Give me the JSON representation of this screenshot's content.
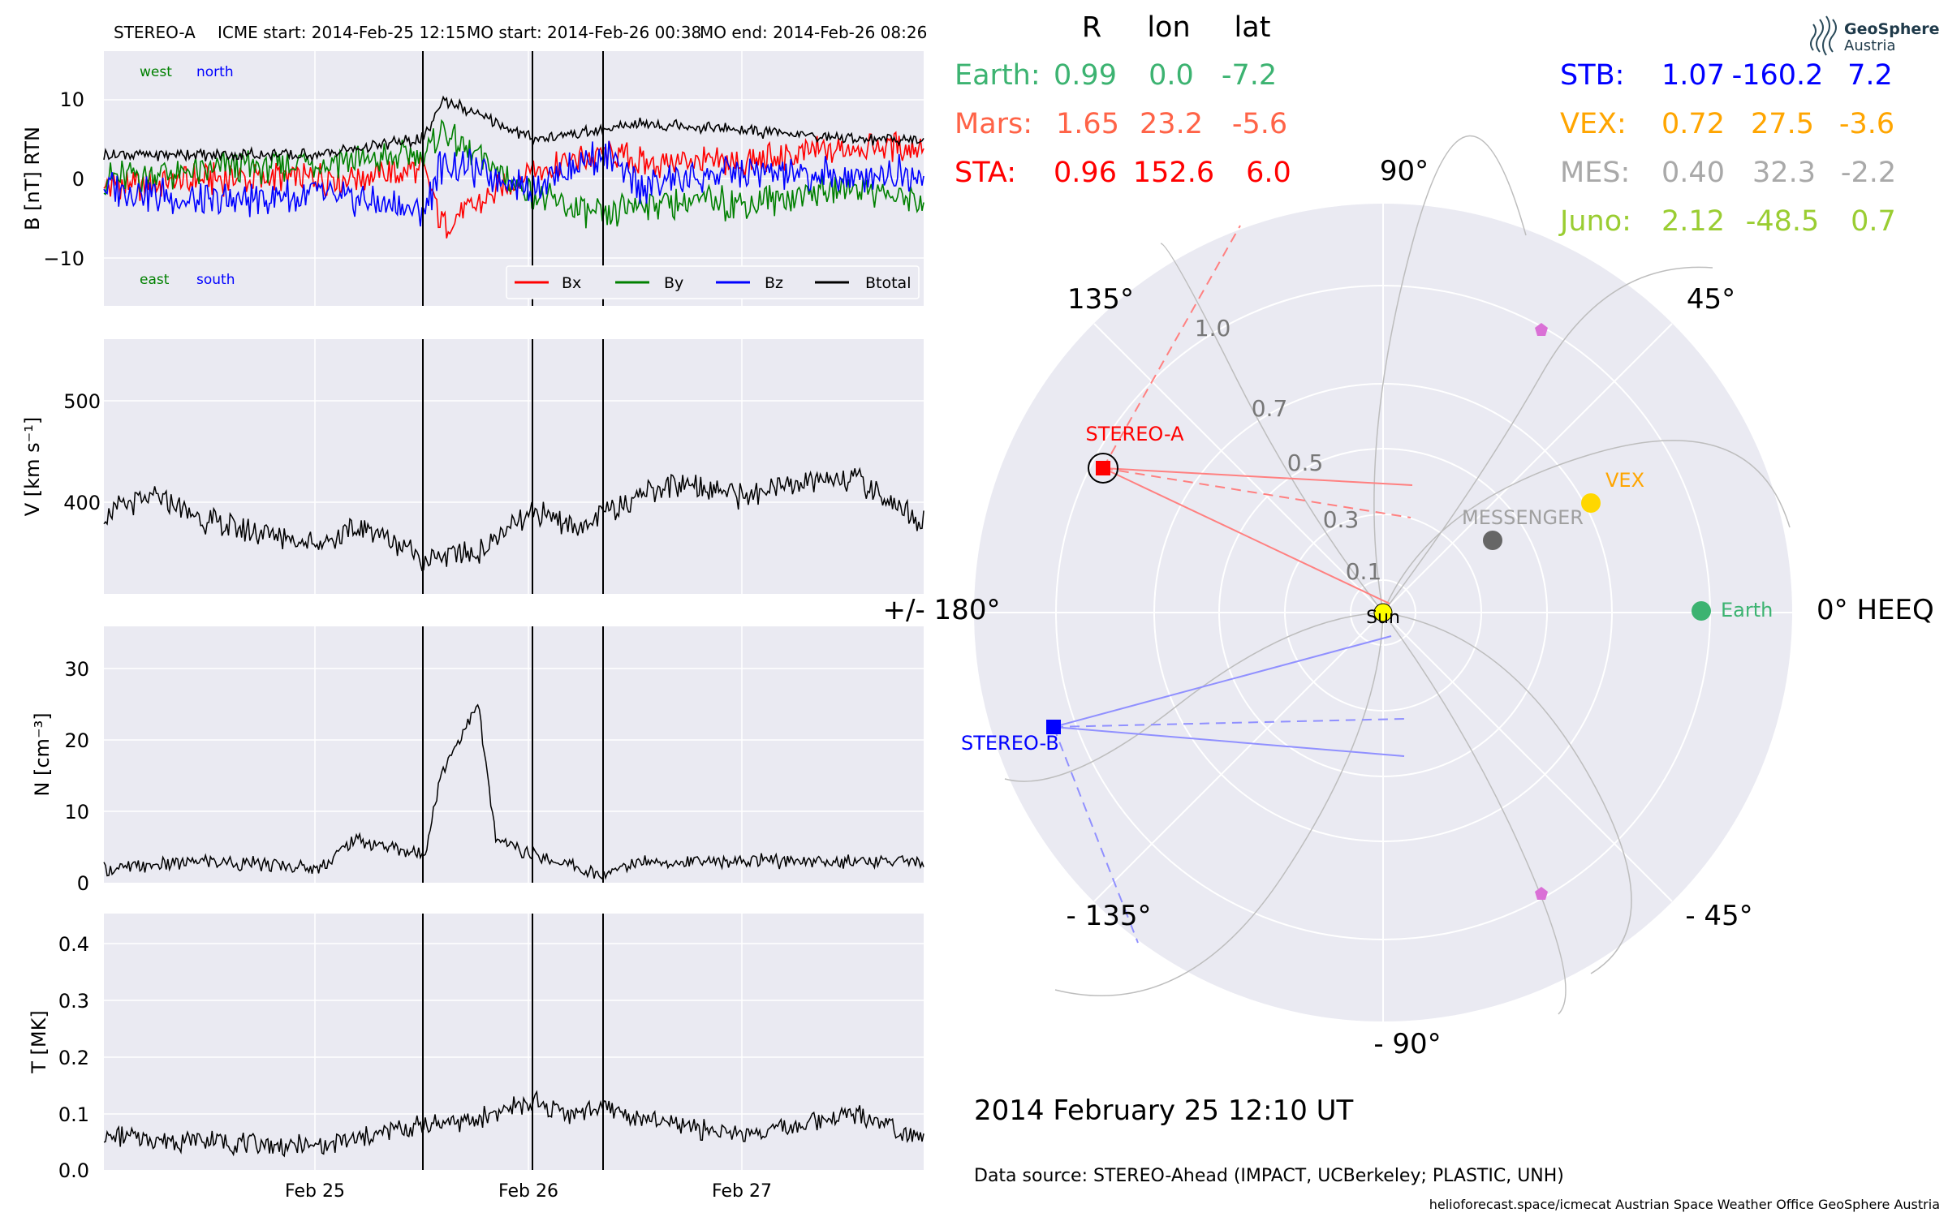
{
  "header": {
    "spacecraft": "STEREO-A",
    "icme_start": "ICME start: 2014-Feb-25 12:15",
    "mo_start": "MO start: 2014-Feb-26 00:38",
    "mo_end": "MO end: 2014-Feb-26 08:26"
  },
  "colors": {
    "panel_bg": "#eaeaf2",
    "bx": "#ff0000",
    "by": "#008000",
    "bz": "#0000ff",
    "btotal": "#000000",
    "earth": "#3cb371",
    "mars": "#ff6347",
    "sta": "#ff0000",
    "stb": "#0000ff",
    "vex": "#ffa500",
    "mes": "#a9a9a9",
    "juno": "#9acd32",
    "psp_marker": "#da70d6"
  },
  "chart_data": [
    {
      "type": "line",
      "panel": "magnetic-field",
      "ylabel": "B [nT] RTN",
      "ylim": [
        -16,
        16
      ],
      "yticks": [
        "−10",
        "0",
        "10"
      ],
      "xlim": [
        "2014-02-24 00:00",
        "2014-02-27 20:00"
      ],
      "xticks": [
        "Feb 25",
        "Feb 26",
        "Feb 27"
      ],
      "annotations": {
        "west": "west",
        "north": "north",
        "east": "east",
        "south": "south"
      },
      "legend": [
        "Bx",
        "By",
        "Bz",
        "Btotal"
      ],
      "legend_position": "lower-right",
      "series": [
        {
          "name": "Bx",
          "color": "#ff0000",
          "x": [
            "Feb 24 00h",
            "Feb 24 12h",
            "Feb 25 00h",
            "Feb 25 12h",
            "Feb 25 14h",
            "Feb 26 00h",
            "Feb 26 08h",
            "Feb 26 12h",
            "Feb 27 00h",
            "Feb 27 12h",
            "Feb 27 20h"
          ],
          "values": [
            -1,
            0,
            0,
            1,
            -6,
            1,
            3,
            2,
            2,
            4,
            4
          ]
        },
        {
          "name": "By",
          "color": "#008000",
          "x": [
            "Feb 24 00h",
            "Feb 24 12h",
            "Feb 25 00h",
            "Feb 25 12h",
            "Feb 25 14h",
            "Feb 26 00h",
            "Feb 26 08h",
            "Feb 26 12h",
            "Feb 27 00h",
            "Feb 27 12h",
            "Feb 27 20h"
          ],
          "values": [
            0,
            1,
            2,
            3,
            6,
            -2,
            -5,
            -3,
            -3,
            -1,
            -3
          ]
        },
        {
          "name": "Bz",
          "color": "#0000ff",
          "x": [
            "Feb 24 00h",
            "Feb 24 12h",
            "Feb 25 00h",
            "Feb 25 12h",
            "Feb 25 14h",
            "Feb 26 00h",
            "Feb 26 08h",
            "Feb 26 12h",
            "Feb 27 00h",
            "Feb 27 12h",
            "Feb 27 20h"
          ],
          "values": [
            -1,
            -3,
            -2,
            -4,
            2,
            -1,
            3,
            -1,
            1,
            0,
            1
          ]
        },
        {
          "name": "Btotal",
          "color": "#000000",
          "x": [
            "Feb 24 00h",
            "Feb 24 12h",
            "Feb 25 00h",
            "Feb 25 12h",
            "Feb 25 14h",
            "Feb 26 00h",
            "Feb 26 08h",
            "Feb 26 12h",
            "Feb 27 00h",
            "Feb 27 12h",
            "Feb 27 20h"
          ],
          "values": [
            3,
            3,
            3,
            5,
            10,
            5,
            6,
            7,
            6,
            5,
            5
          ]
        }
      ],
      "event_lines": [
        "2014-02-25 12:15",
        "2014-02-26 00:38",
        "2014-02-26 08:26"
      ]
    },
    {
      "type": "line",
      "panel": "speed",
      "ylabel": "V [km s⁻¹]",
      "ylim": [
        310,
        560
      ],
      "yticks": [
        "400",
        "500"
      ],
      "series": [
        {
          "name": "V",
          "x": [
            "Feb 24 00h",
            "Feb 24 06h",
            "Feb 24 12h",
            "Feb 24 18h",
            "Feb 25 00h",
            "Feb 25 06h",
            "Feb 25 12h",
            "Feb 25 18h",
            "Feb 26 00h",
            "Feb 26 06h",
            "Feb 26 12h",
            "Feb 26 18h",
            "Feb 27 00h",
            "Feb 27 06h",
            "Feb 27 12h",
            "Feb 27 20h"
          ],
          "values": [
            390,
            405,
            380,
            370,
            360,
            375,
            345,
            350,
            390,
            375,
            410,
            420,
            405,
            420,
            425,
            380
          ]
        }
      ]
    },
    {
      "type": "line",
      "panel": "density",
      "ylabel": "N [cm⁻³]",
      "ylim": [
        0,
        36
      ],
      "yticks": [
        "0",
        "10",
        "20",
        "30"
      ],
      "series": [
        {
          "name": "N",
          "x": [
            "Feb 24 00h",
            "Feb 24 12h",
            "Feb 25 00h",
            "Feb 25 04h",
            "Feb 25 12h",
            "Feb 25 14h",
            "Feb 25 18h",
            "Feb 25 20h",
            "Feb 26 00h",
            "Feb 26 08h",
            "Feb 26 12h",
            "Feb 27 00h",
            "Feb 27 12h",
            "Feb 27 20h"
          ],
          "values": [
            2,
            3,
            2,
            6,
            4,
            16,
            25,
            6,
            4,
            1,
            3,
            3,
            3,
            3
          ]
        }
      ]
    },
    {
      "type": "line",
      "panel": "temperature",
      "ylabel": "T [MK]",
      "ylim": [
        0,
        0.45
      ],
      "yticks": [
        "0.0",
        "0.1",
        "0.2",
        "0.3",
        "0.4"
      ],
      "series": [
        {
          "name": "T",
          "x": [
            "Feb 24 00h",
            "Feb 24 12h",
            "Feb 25 00h",
            "Feb 25 12h",
            "Feb 25 18h",
            "Feb 26 00h",
            "Feb 26 04h",
            "Feb 26 08h",
            "Feb 26 12h",
            "Feb 27 00h",
            "Feb 27 12h",
            "Feb 27 20h"
          ],
          "values": [
            0.06,
            0.05,
            0.04,
            0.08,
            0.09,
            0.12,
            0.1,
            0.11,
            0.09,
            0.06,
            0.1,
            0.06
          ]
        }
      ]
    },
    {
      "type": "scatter",
      "panel": "polar-heeq",
      "rticks": [
        "0.1",
        "0.3",
        "0.5",
        "0.7",
        "1.0"
      ],
      "angle_labels": [
        "90°",
        "45°",
        "0° HEEQ",
        "- 45°",
        "- 90°",
        "- 135°",
        "+/- 180°",
        "135°"
      ],
      "bodies": [
        {
          "name": "Earth",
          "r": 0.99,
          "lon": 0.0
        },
        {
          "name": "VEX",
          "r": 0.72,
          "lon": 27.5
        },
        {
          "name": "MESSENGER",
          "r": 0.4,
          "lon": 32.3
        },
        {
          "name": "STEREO-A",
          "r": 0.96,
          "lon": 152.6
        },
        {
          "name": "STEREO-B",
          "r": 1.07,
          "lon": -160.2
        },
        {
          "name": "Sun",
          "r": 0,
          "lon": 0
        }
      ]
    }
  ],
  "positions_table": {
    "headers": [
      "R",
      "lon",
      "lat"
    ],
    "left": [
      {
        "label": "Earth:",
        "r": "0.99",
        "lon": "0.0",
        "lat": "-7.2"
      },
      {
        "label": "Mars:",
        "r": "1.65",
        "lon": "23.2",
        "lat": "-5.6"
      },
      {
        "label": "STA:",
        "r": "0.96",
        "lon": "152.6",
        "lat": "6.0"
      }
    ],
    "right": [
      {
        "label": "STB:",
        "r": "1.07",
        "lon": "-160.2",
        "lat": "7.2"
      },
      {
        "label": "VEX:",
        "r": "0.72",
        "lon": "27.5",
        "lat": "-3.6"
      },
      {
        "label": "MES:",
        "r": "0.40",
        "lon": "32.3",
        "lat": "-2.2"
      },
      {
        "label": "Juno:",
        "r": "2.12",
        "lon": "-48.5",
        "lat": "0.7"
      }
    ]
  },
  "logo": {
    "line1": "GeoSphere",
    "line2": "Austria"
  },
  "footer": {
    "datetime": "2014 February 25  12:10 UT",
    "data_source": "Data source: STEREO-Ahead (IMPACT, UCBerkeley; PLASTIC, UNH)",
    "credits": "helioforecast.space/icmecat   Austrian Space Weather Office   GeoSphere Austria"
  }
}
